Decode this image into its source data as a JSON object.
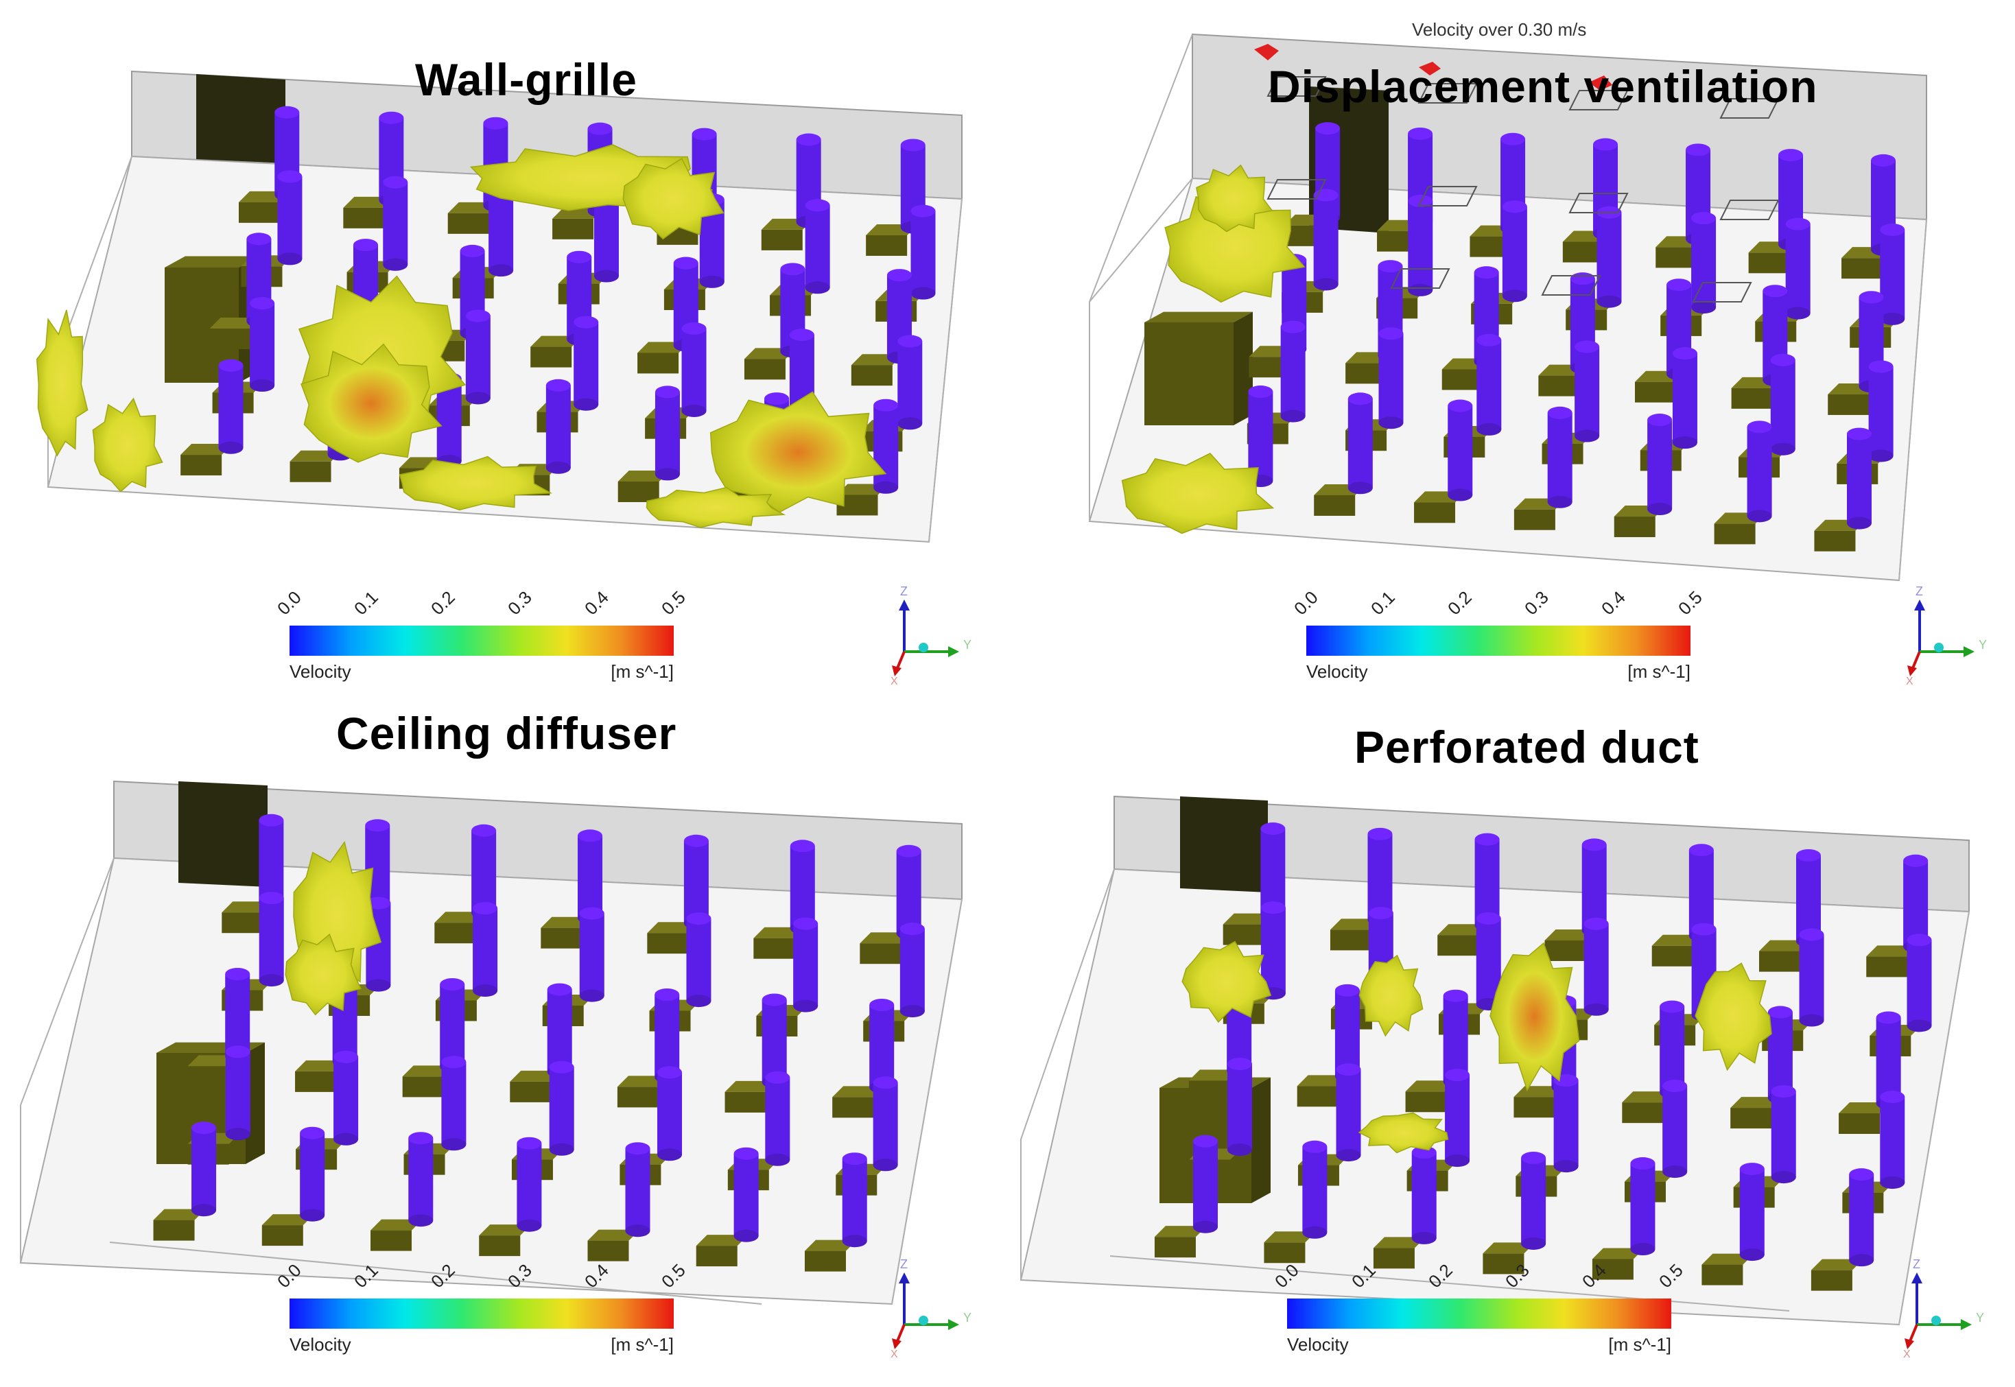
{
  "panels": [
    {
      "title": "Wall-grille",
      "note": ""
    },
    {
      "title": "Displacement ventilation",
      "note": "Velocity over 0.30 m/s"
    },
    {
      "title": "Ceiling diffuser",
      "note": ""
    },
    {
      "title": "Perforated duct",
      "note": ""
    }
  ],
  "legend": {
    "ticks": [
      "0.0",
      "0.1",
      "0.2",
      "0.3",
      "0.4",
      "0.5"
    ],
    "label": "Velocity",
    "unit": "[m s^-1]"
  },
  "axes": {
    "z": "Z",
    "y": "Y",
    "x": "X"
  },
  "colors": {
    "column": "#5a1ee8",
    "desk": "#55550f",
    "wall": "#d9d9d9",
    "floor": "#f4f4f4",
    "door": "#2a2a10",
    "isosurface": "#dcdc30",
    "isosurface_hot": "#e07a20"
  }
}
